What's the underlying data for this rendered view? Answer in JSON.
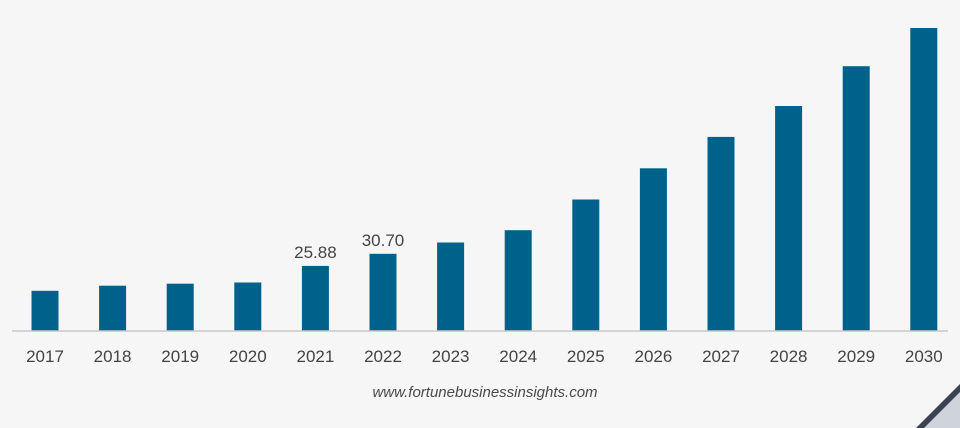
{
  "chart_data": {
    "type": "bar",
    "categories": [
      "2017",
      "2018",
      "2019",
      "2020",
      "2021",
      "2022",
      "2023",
      "2024",
      "2025",
      "2026",
      "2027",
      "2028",
      "2029",
      "2030"
    ],
    "values": [
      16.0,
      18.0,
      18.8,
      19.3,
      25.88,
      30.7,
      35.2,
      40.1,
      52.3,
      64.7,
      77.2,
      89.5,
      105.3,
      120.5
    ],
    "data_labels": {
      "2021": "25.88",
      "2022": "30.70"
    },
    "title": "",
    "xlabel": "",
    "ylabel": "",
    "ylim": [
      0,
      120.5
    ],
    "grid": false,
    "bar_color": "#00628b",
    "baseline_color": "#c8c8c8"
  },
  "source": "www.fortunebusinessinsights.com"
}
